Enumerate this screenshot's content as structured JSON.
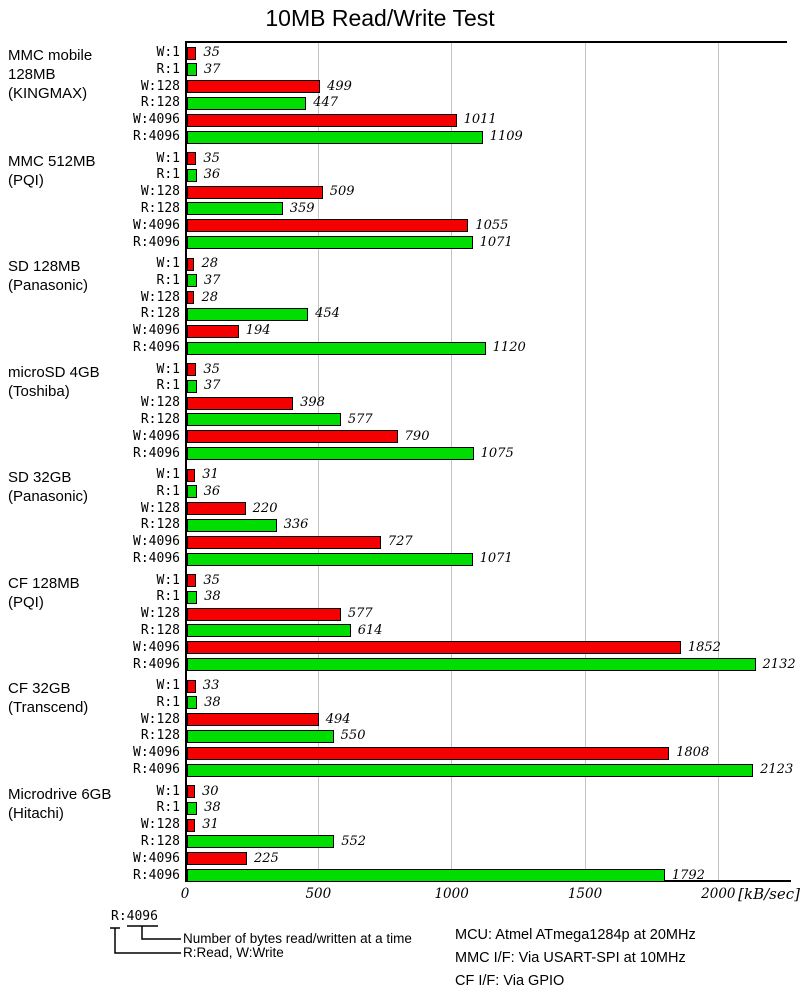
{
  "title": "10MB Read/Write Test",
  "chart_data": {
    "type": "bar",
    "orientation": "horizontal",
    "title": "10MB Read/Write Test",
    "xlabel": "[kB/sec]",
    "unit_label": "[kB/sec]",
    "x_ticks": [
      0,
      500,
      1000,
      1500,
      2000
    ],
    "x_max": 2250,
    "grid": true,
    "bar_keys": [
      "W:1",
      "R:1",
      "W:128",
      "R:128",
      "W:4096",
      "R:4096"
    ],
    "colors": {
      "write": "#f40000",
      "read": "#00dd00",
      "grid": "#c3c3c3",
      "axis": "#000000"
    },
    "groups": [
      {
        "label_lines": [
          "MMC mobile",
          "128MB",
          "(KINGMAX)"
        ],
        "values": [
          35,
          37,
          499,
          447,
          1011,
          1109
        ]
      },
      {
        "label_lines": [
          "MMC 512MB",
          "(PQI)"
        ],
        "values": [
          35,
          36,
          509,
          359,
          1055,
          1071
        ]
      },
      {
        "label_lines": [
          "SD 128MB",
          "(Panasonic)"
        ],
        "values": [
          28,
          37,
          28,
          454,
          194,
          1120
        ]
      },
      {
        "label_lines": [
          "microSD 4GB",
          "(Toshiba)"
        ],
        "values": [
          35,
          37,
          398,
          577,
          790,
          1075
        ]
      },
      {
        "label_lines": [
          "SD 32GB",
          "(Panasonic)"
        ],
        "values": [
          31,
          36,
          220,
          336,
          727,
          1071
        ]
      },
      {
        "label_lines": [
          "CF 128MB",
          "(PQI)"
        ],
        "values": [
          35,
          38,
          577,
          614,
          1852,
          2132
        ]
      },
      {
        "label_lines": [
          "CF 32GB",
          "(Transcend)"
        ],
        "values": [
          33,
          38,
          494,
          550,
          1808,
          2123
        ]
      },
      {
        "label_lines": [
          "Microdrive 6GB",
          "(Hitachi)"
        ],
        "values": [
          30,
          38,
          31,
          552,
          225,
          1792
        ]
      }
    ]
  },
  "legend": {
    "example": "R:4096",
    "bytes_note": "Number of bytes read/written at a time",
    "rw_note": "R:Read, W:Write"
  },
  "footer": {
    "lines": [
      "MCU: Atmel ATmega1284p at 20MHz",
      "MMC I/F: Via USART-SPI at 10MHz",
      "CF I/F: Via GPIO"
    ]
  }
}
